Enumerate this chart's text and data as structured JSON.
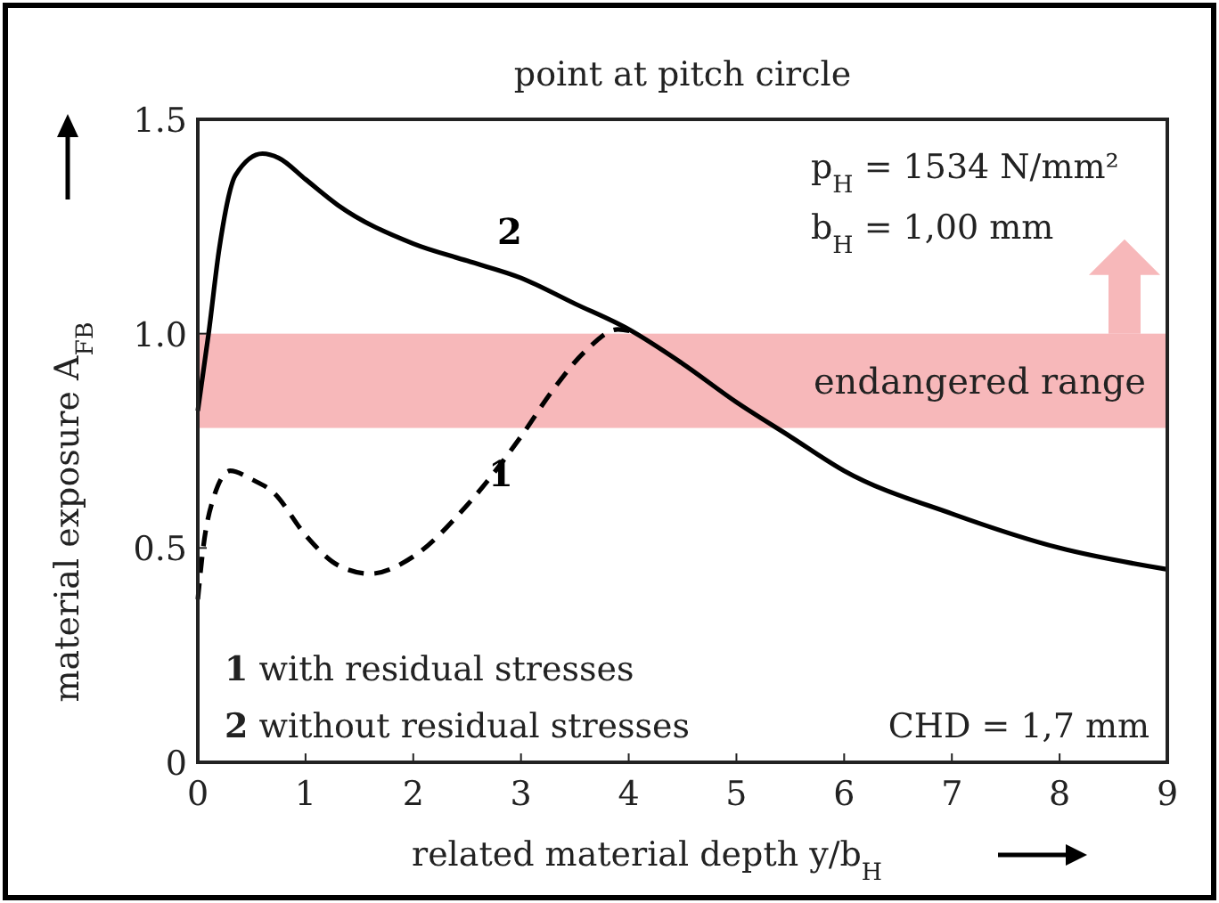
{
  "chart_data": {
    "type": "line",
    "title": "point at pitch circle",
    "xlabel": "related material depth y/b$_{H}$",
    "ylabel": "material exposure A$_{FB}$",
    "xlim": [
      0,
      9
    ],
    "xticks": [
      0,
      1,
      2,
      3,
      4,
      5,
      6,
      7,
      8,
      9
    ],
    "ylim": [
      0,
      1.5
    ],
    "yticks": [
      0,
      {
        "value": 0.5,
        "label": "0.5"
      },
      {
        "value": 1,
        "label": "1.0"
      },
      {
        "value": 1.5,
        "label": "1.5"
      }
    ],
    "grid": false,
    "series": [
      {
        "name": "1",
        "color": "#000000",
        "line_style": "dashed",
        "x": [
          0,
          0.05,
          0.15,
          0.3,
          0.5,
          0.7,
          1,
          1.3,
          1.6,
          2,
          2.5,
          3,
          3.3,
          3.6,
          3.9,
          4.1
        ],
        "values": [
          0.38,
          0.5,
          0.62,
          0.68,
          0.66,
          0.63,
          0.53,
          0.46,
          0.44,
          0.48,
          0.6,
          0.76,
          0.87,
          0.96,
          1.01,
          1.0
        ]
      },
      {
        "name": "2",
        "color": "#000000",
        "line_style": "solid",
        "x": [
          0,
          0.1,
          0.2,
          0.35,
          0.6,
          0.75,
          1,
          1.3,
          2,
          2.5,
          3,
          3.5,
          4,
          4.5,
          5,
          5.5,
          6,
          7,
          8,
          9
        ],
        "values": [
          0.82,
          1.0,
          1.2,
          1.37,
          1.42,
          1.41,
          1.36,
          1.3,
          1.21,
          1.17,
          1.13,
          1.07,
          1.01,
          0.93,
          0.84,
          0.76,
          0.68,
          0.58,
          0.5,
          0.45
        ]
      }
    ],
    "bands": [
      {
        "axis": "y",
        "from": 0.78,
        "to": 1.0,
        "label": "endangered range",
        "color": "#f7b8ba"
      }
    ],
    "annotations": [
      "p$_{H}$ = 1534 N/mm²",
      "b$_{H}$ = 1,00 mm",
      "1 with residual stresses",
      "2 without residual stresses",
      "CHD = 1,7 mm"
    ]
  }
}
